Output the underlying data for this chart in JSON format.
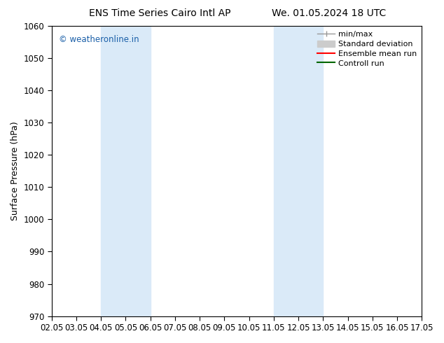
{
  "title_left": "ENS Time Series Cairo Intl AP",
  "title_right": "We. 01.05.2024 18 UTC",
  "ylabel": "Surface Pressure (hPa)",
  "ylim": [
    970,
    1060
  ],
  "yticks": [
    970,
    980,
    990,
    1000,
    1010,
    1020,
    1030,
    1040,
    1050,
    1060
  ],
  "xlim": [
    0,
    15
  ],
  "xtick_labels": [
    "02.05",
    "03.05",
    "04.05",
    "05.05",
    "06.05",
    "07.05",
    "08.05",
    "09.05",
    "10.05",
    "11.05",
    "12.05",
    "13.05",
    "14.05",
    "15.05",
    "16.05",
    "17.05"
  ],
  "xtick_positions": [
    0,
    1,
    2,
    3,
    4,
    5,
    6,
    7,
    8,
    9,
    10,
    11,
    12,
    13,
    14,
    15
  ],
  "shaded_regions": [
    {
      "xmin": 2.0,
      "xmax": 4.0,
      "color": "#daeaf8"
    },
    {
      "xmin": 9.0,
      "xmax": 11.0,
      "color": "#daeaf8"
    }
  ],
  "watermark": "© weatheronline.in",
  "watermark_color": "#1a5fa8",
  "background_color": "#ffffff",
  "legend_items": [
    {
      "label": "min/max",
      "color": "#999999"
    },
    {
      "label": "Standard deviation",
      "color": "#cccccc"
    },
    {
      "label": "Ensemble mean run",
      "color": "#ff0000"
    },
    {
      "label": "Controll run",
      "color": "#006600"
    }
  ],
  "font_color": "#000000",
  "tick_color": "#000000",
  "spine_color": "#000000",
  "title_fontsize": 10,
  "ylabel_fontsize": 9,
  "tick_fontsize": 8.5,
  "watermark_fontsize": 8.5,
  "legend_fontsize": 8
}
